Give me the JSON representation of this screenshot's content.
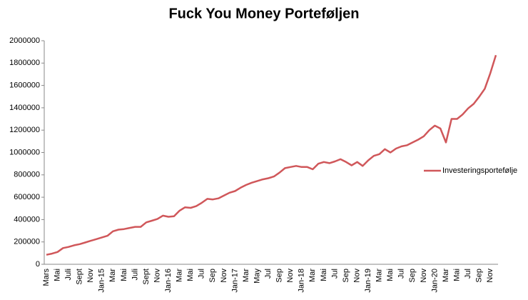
{
  "chart_data": {
    "type": "line",
    "title": "Fuck You Money Porteføljen",
    "categories": [
      "Mars",
      null,
      "Mai",
      null,
      "Juli",
      null,
      "Sept",
      null,
      "Nov",
      null,
      "Jan-15",
      null,
      "Mar",
      null,
      "Mai",
      null,
      "Juli",
      null,
      "Sept",
      null,
      "Nov",
      null,
      "Jan-16",
      null,
      "Mar",
      null,
      "Mai",
      null,
      "Jul",
      null,
      "Sep",
      null,
      "Nov",
      null,
      "Jan-17",
      null,
      "Mar",
      null,
      "May",
      null,
      "Jul",
      null,
      "Sep",
      null,
      "Nov",
      null,
      "Jan-18",
      null,
      "Mar",
      null,
      "Mai",
      null,
      "Jul",
      null,
      "Sep",
      null,
      "Nov",
      null,
      "Jan-19",
      null,
      "Mar",
      null,
      "Mai",
      null,
      "Jul",
      null,
      "Sep",
      null,
      "Nov",
      null,
      "Jan-20",
      null,
      "Mar",
      null,
      "Mai",
      null,
      "Jul",
      null,
      "Sep",
      null,
      "Nov",
      null
    ],
    "series": [
      {
        "name": "Investeringsportefølje",
        "color": "#d0575a",
        "values": [
          85000,
          95000,
          110000,
          145000,
          155000,
          170000,
          180000,
          195000,
          210000,
          225000,
          240000,
          255000,
          295000,
          310000,
          315000,
          325000,
          335000,
          335000,
          375000,
          390000,
          405000,
          435000,
          425000,
          430000,
          480000,
          510000,
          505000,
          520000,
          550000,
          585000,
          580000,
          590000,
          615000,
          640000,
          655000,
          685000,
          710000,
          730000,
          745000,
          760000,
          770000,
          785000,
          820000,
          860000,
          870000,
          880000,
          870000,
          870000,
          850000,
          900000,
          915000,
          905000,
          920000,
          940000,
          915000,
          885000,
          915000,
          880000,
          930000,
          970000,
          985000,
          1030000,
          1000000,
          1035000,
          1055000,
          1065000,
          1090000,
          1115000,
          1145000,
          1200000,
          1240000,
          1215000,
          1090000,
          1300000,
          1300000,
          1340000,
          1395000,
          1435000,
          1500000,
          1570000,
          1710000,
          1870000
        ]
      }
    ],
    "ylim": [
      0,
      2000000
    ],
    "yticks": [
      0,
      200000,
      400000,
      600000,
      800000,
      1000000,
      1200000,
      1400000,
      1600000,
      1800000,
      2000000
    ],
    "grid": false,
    "legend": "right"
  }
}
